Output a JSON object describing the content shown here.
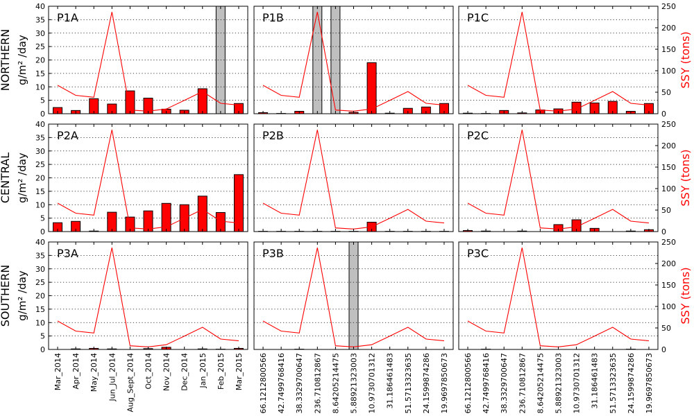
{
  "chart_data": {
    "type": "bar",
    "left_axis": {
      "ylabel": "g/m² /day",
      "ylim": [
        0,
        40
      ],
      "ticks": [
        0,
        5,
        10,
        15,
        20,
        25,
        30,
        35,
        40
      ]
    },
    "right_axis": {
      "ylabel": "SSY (tons)",
      "ylim": [
        0,
        250
      ],
      "ticks": [
        0,
        50,
        100,
        150,
        200,
        250
      ]
    },
    "grid": "dotted horizontal",
    "rows": [
      {
        "label": "NORTHERN"
      },
      {
        "label": "CENTRAL"
      },
      {
        "label": "SOUTHERN"
      }
    ],
    "x_tick_labels_col1": [
      "Mar_2014",
      "Apr_2014",
      "May_2014",
      "Jun_Jul_2014",
      "Aug_Sept_2014",
      "Oct_2014",
      "Nov_2014",
      "Dec_2014",
      "Jan_2015",
      "Feb_2015",
      "Mar_2015"
    ],
    "x_tick_labels_col2": [
      "66.1212800566",
      "42.7499768416",
      "38.3329700647",
      "236.710812867",
      "8.64205214475",
      "5.8892132300​3",
      "10.9730701312",
      "31.186461483",
      "51.5713323635",
      "24.1599874286",
      "19.9697850673"
    ],
    "x_tick_labels_col3": [
      "66.1212800566",
      "42.7499768416",
      "38.3329700647",
      "236.710812867",
      "8.64205214475",
      "5.8892132300​3",
      "10.9730701312",
      "31.186461483",
      "51.5713323635",
      "24.1599874286",
      "19.9697850673"
    ],
    "ssy_line": [
      66.1,
      42.7,
      38.3,
      236.7,
      8.6,
      5.9,
      11.0,
      31.2,
      51.6,
      24.2,
      20.0
    ],
    "panels": [
      {
        "title": "P1A",
        "row": 0,
        "col": 0,
        "values": [
          2.3,
          1.2,
          5.6,
          3.6,
          8.5,
          5.8,
          1.7,
          1.3,
          9.3,
          0,
          3.8
        ],
        "shaded": [
          9
        ]
      },
      {
        "title": "P1B",
        "row": 0,
        "col": 1,
        "values": [
          0.4,
          0.1,
          0.9,
          0,
          0,
          0.5,
          19.0,
          0.2,
          2.0,
          2.5,
          3.8
        ],
        "shaded": [
          3,
          4
        ]
      },
      {
        "title": "P1C",
        "row": 0,
        "col": 2,
        "values": [
          0.2,
          0.1,
          1.2,
          0.3,
          1.4,
          1.8,
          4.3,
          4.0,
          4.6,
          0.9,
          3.8
        ],
        "shaded": []
      },
      {
        "title": "P2A",
        "row": 1,
        "col": 0,
        "values": [
          3.3,
          3.8,
          0.2,
          7.2,
          5.4,
          7.7,
          10.5,
          10.0,
          13.2,
          7.1,
          21.2
        ],
        "shaded": []
      },
      {
        "title": "P2B",
        "row": 1,
        "col": 1,
        "values": [
          0.1,
          0.1,
          0.1,
          0.1,
          0.1,
          0.1,
          3.5,
          0.1,
          0.1,
          0.1,
          0.1
        ],
        "shaded": []
      },
      {
        "title": "P2C",
        "row": 1,
        "col": 2,
        "values": [
          0.4,
          0.2,
          0,
          0.2,
          0,
          2.6,
          4.4,
          1.2,
          0,
          0.2,
          0.7
        ],
        "shaded": []
      },
      {
        "title": "P3A",
        "row": 2,
        "col": 0,
        "values": [
          0,
          0.2,
          0.4,
          0.2,
          0,
          0.3,
          0.8,
          0,
          0.2,
          0.1,
          0.4
        ],
        "shaded": []
      },
      {
        "title": "P3B",
        "row": 2,
        "col": 1,
        "values": [
          0,
          0,
          0.1,
          0,
          0,
          0,
          0,
          0,
          0,
          0,
          0
        ],
        "shaded": [
          5
        ]
      },
      {
        "title": "P3C",
        "row": 2,
        "col": 2,
        "values": [
          0,
          0.1,
          0,
          0,
          0,
          0,
          0,
          0,
          0,
          0.1,
          0
        ],
        "shaded": []
      }
    ],
    "colors": {
      "bar": "#ff0000",
      "line": "#ff0000",
      "shade": "#bfbfbf",
      "grid": "#000000"
    }
  }
}
